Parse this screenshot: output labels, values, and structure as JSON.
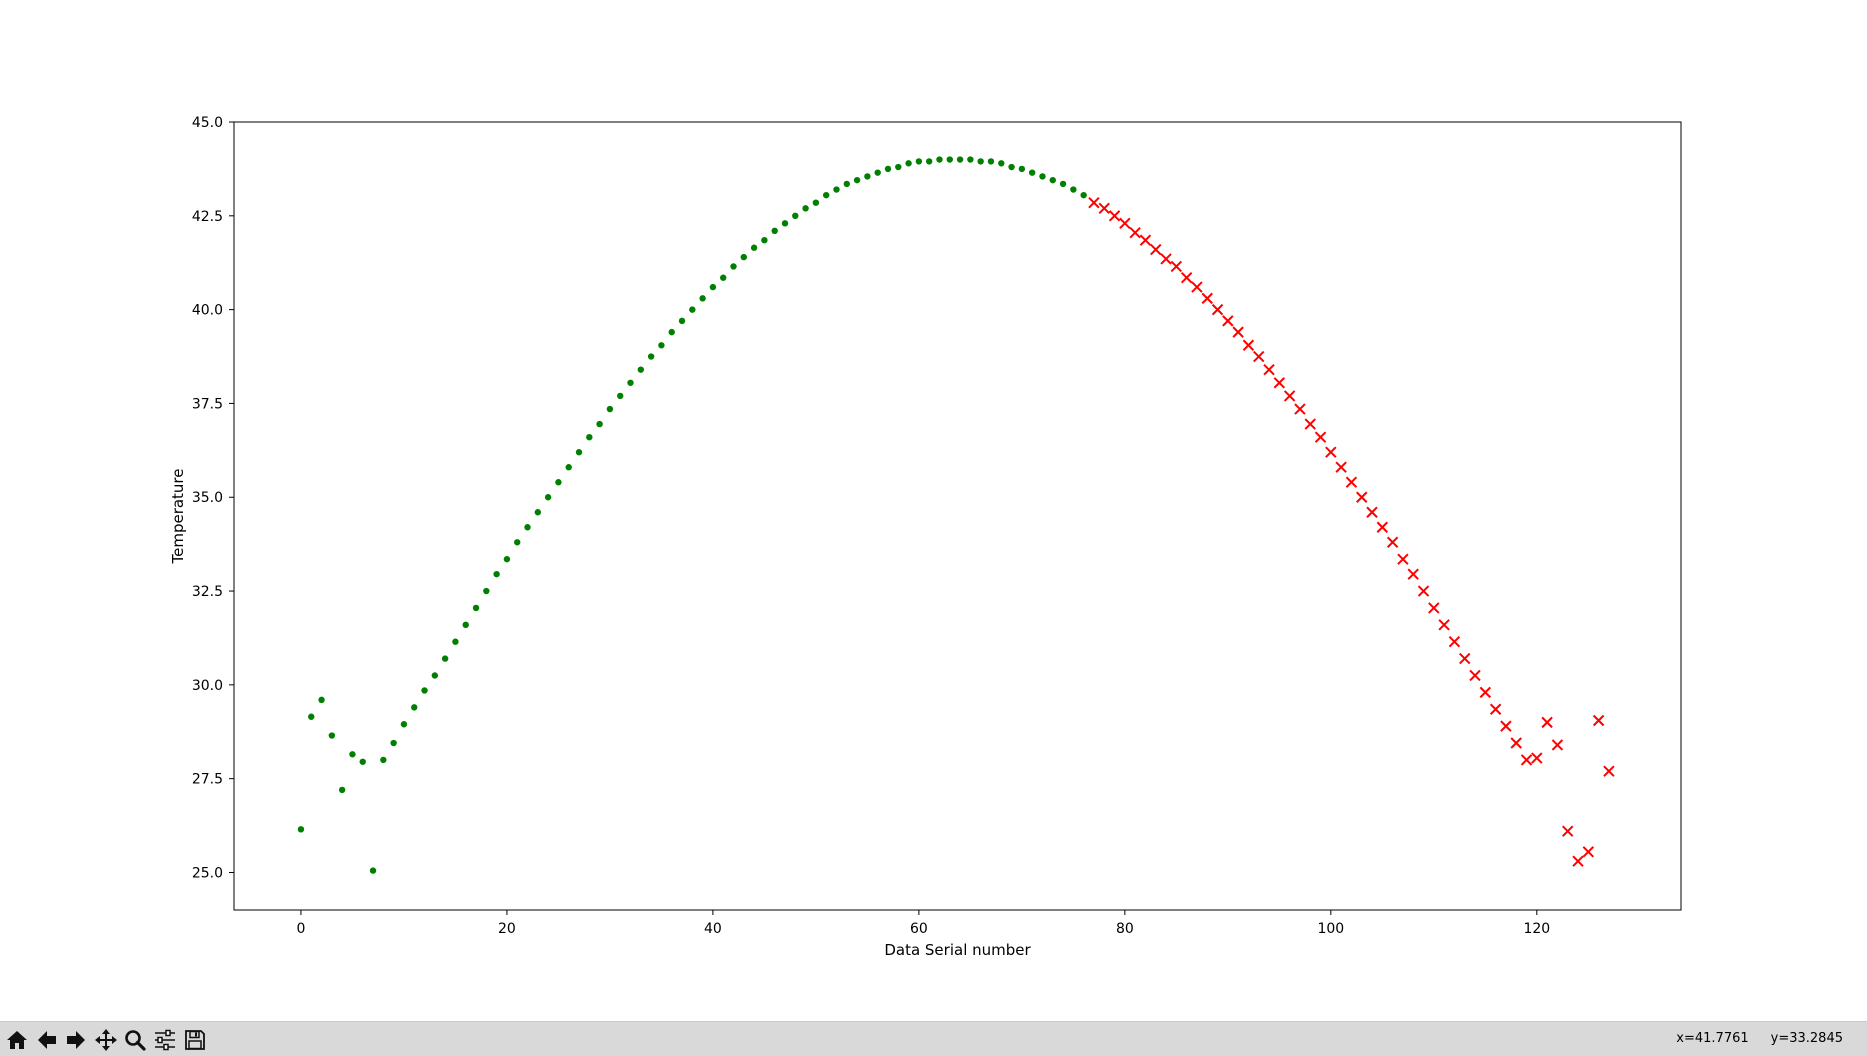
{
  "window": {
    "toolbar": {
      "buttons": [
        {
          "name": "home-button",
          "icon": "home-icon"
        },
        {
          "name": "back-button",
          "icon": "arrow-left-icon"
        },
        {
          "name": "forward-button",
          "icon": "arrow-right-icon"
        },
        {
          "name": "pan-button",
          "icon": "move-icon"
        },
        {
          "name": "zoom-button",
          "icon": "magnifier-icon"
        },
        {
          "name": "configure-subplots-button",
          "icon": "sliders-icon"
        },
        {
          "name": "save-button",
          "icon": "floppy-disk-icon"
        }
      ],
      "coord_x": "x=41.7761",
      "coord_y": "y=33.2845"
    }
  },
  "chart_data": {
    "type": "scatter",
    "title": "",
    "xlabel": "Data Serial number",
    "ylabel": "Temperature",
    "xlim": [
      -6.5,
      134
    ],
    "ylim": [
      24.0,
      45.0
    ],
    "xticks": [
      0,
      20,
      40,
      60,
      80,
      100,
      120
    ],
    "xtick_labels": [
      "0",
      "20",
      "40",
      "60",
      "80",
      "100",
      "120"
    ],
    "yticks": [
      25.0,
      27.5,
      30.0,
      32.5,
      35.0,
      37.5,
      40.0,
      42.5,
      45.0
    ],
    "ytick_labels": [
      "25.0",
      "27.5",
      "30.0",
      "32.5",
      "35.0",
      "37.5",
      "40.0",
      "42.5",
      "45.0"
    ],
    "grid": false,
    "legend": "none",
    "series": [
      {
        "marker": "dot",
        "color": "#008000",
        "x": [
          0,
          1,
          2,
          3,
          4,
          5,
          6,
          7,
          8,
          9,
          10,
          11,
          12,
          13,
          14,
          15,
          16,
          17,
          18,
          19,
          20,
          21,
          22,
          23,
          24,
          25,
          26,
          27,
          28,
          29,
          30,
          31,
          32,
          33,
          34,
          35,
          36,
          37,
          38,
          39,
          40,
          41,
          42,
          43,
          44,
          45,
          46,
          47,
          48,
          49,
          50,
          51,
          52,
          53,
          54,
          55,
          56,
          57,
          58,
          59,
          60,
          61,
          62,
          63,
          64,
          65,
          66,
          67,
          68,
          69,
          70,
          71,
          72,
          73,
          74,
          75,
          76
        ],
        "y": [
          26.15,
          29.15,
          29.6,
          28.65,
          27.2,
          28.15,
          27.95,
          25.05,
          28.0,
          28.45,
          28.95,
          29.4,
          29.85,
          30.25,
          30.7,
          31.15,
          31.6,
          32.05,
          32.5,
          32.95,
          33.35,
          33.8,
          34.2,
          34.6,
          35.0,
          35.4,
          35.8,
          36.2,
          36.6,
          36.95,
          37.35,
          37.7,
          38.05,
          38.4,
          38.75,
          39.05,
          39.4,
          39.7,
          40.0,
          40.3,
          40.6,
          40.85,
          41.15,
          41.4,
          41.65,
          41.85,
          42.1,
          42.3,
          42.5,
          42.7,
          42.85,
          43.05,
          43.2,
          43.35,
          43.45,
          43.55,
          43.65,
          43.75,
          43.8,
          43.9,
          43.95,
          43.95,
          44.0,
          44.0,
          44.0,
          44.0,
          43.95,
          43.95,
          43.9,
          43.8,
          43.75,
          43.65,
          43.55,
          43.45,
          43.35,
          43.2,
          43.05
        ]
      },
      {
        "marker": "x",
        "color": "#ff0000",
        "x": [
          77,
          78,
          79,
          80,
          81,
          82,
          83,
          84,
          85,
          86,
          87,
          88,
          89,
          90,
          91,
          92,
          93,
          94,
          95,
          96,
          97,
          98,
          99,
          100,
          101,
          102,
          103,
          104,
          105,
          106,
          107,
          108,
          109,
          110,
          111,
          112,
          113,
          114,
          115,
          116,
          117,
          118,
          119,
          120,
          121,
          122,
          123,
          124,
          125,
          126,
          127
        ],
        "y": [
          42.85,
          42.7,
          42.5,
          42.3,
          42.05,
          41.85,
          41.6,
          41.35,
          41.15,
          40.85,
          40.6,
          40.3,
          40.0,
          39.7,
          39.4,
          39.05,
          38.75,
          38.4,
          38.05,
          37.7,
          37.35,
          36.95,
          36.6,
          36.2,
          35.8,
          35.4,
          35.0,
          34.6,
          34.2,
          33.8,
          33.35,
          32.95,
          32.5,
          32.05,
          31.6,
          31.15,
          30.7,
          30.25,
          29.8,
          29.35,
          28.9,
          28.45,
          28.0,
          28.05,
          29.0,
          28.4,
          26.1,
          25.3,
          25.55,
          29.05,
          27.7
        ]
      }
    ]
  }
}
